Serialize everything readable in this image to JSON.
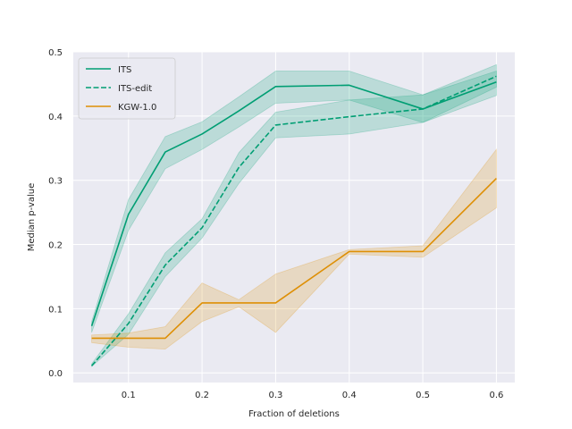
{
  "chart_data": {
    "type": "line",
    "title": "",
    "xlabel": "Fraction of deletions",
    "ylabel": "Median p-value",
    "xlim": [
      0.025,
      0.625
    ],
    "ylim": [
      -0.015,
      0.5
    ],
    "xticks": [
      0.1,
      0.2,
      0.3,
      0.4,
      0.5,
      0.6
    ],
    "xtick_labels": [
      "0.1",
      "0.2",
      "0.3",
      "0.4",
      "0.5",
      "0.6"
    ],
    "yticks": [
      0.0,
      0.1,
      0.2,
      0.3,
      0.4,
      0.5
    ],
    "ytick_labels": [
      "0.0",
      "0.1",
      "0.2",
      "0.3",
      "0.4",
      "0.5"
    ],
    "grid": true,
    "legend_position": "top-left",
    "series": [
      {
        "name": "ITS",
        "color": "#009e73",
        "style": "solid",
        "x": [
          0.05,
          0.1,
          0.15,
          0.2,
          0.25,
          0.3,
          0.4,
          0.5,
          0.6
        ],
        "values": [
          0.073,
          0.247,
          0.344,
          0.372,
          0.408,
          0.446,
          0.448,
          0.411,
          0.453
        ],
        "lower": [
          0.063,
          0.222,
          0.318,
          0.348,
          0.383,
          0.42,
          0.425,
          0.39,
          0.432
        ],
        "upper": [
          0.08,
          0.27,
          0.368,
          0.391,
          0.43,
          0.47,
          0.47,
          0.433,
          0.47
        ]
      },
      {
        "name": "ITS-edit",
        "color": "#009e73",
        "style": "dashed",
        "x": [
          0.05,
          0.1,
          0.15,
          0.2,
          0.25,
          0.3,
          0.4,
          0.5,
          0.6
        ],
        "values": [
          0.011,
          0.077,
          0.168,
          0.226,
          0.32,
          0.386,
          0.399,
          0.411,
          0.462
        ],
        "lower": [
          0.01,
          0.06,
          0.15,
          0.21,
          0.295,
          0.366,
          0.372,
          0.39,
          0.445
        ],
        "upper": [
          0.014,
          0.092,
          0.187,
          0.24,
          0.343,
          0.406,
          0.425,
          0.433,
          0.48
        ]
      },
      {
        "name": "KGW-1.0",
        "color": "#de8f05",
        "style": "solid",
        "x": [
          0.05,
          0.1,
          0.15,
          0.2,
          0.25,
          0.3,
          0.4,
          0.5,
          0.6
        ],
        "values": [
          0.054,
          0.054,
          0.054,
          0.109,
          0.109,
          0.109,
          0.189,
          0.189,
          0.303
        ],
        "lower": [
          0.047,
          0.04,
          0.037,
          0.08,
          0.103,
          0.063,
          0.185,
          0.18,
          0.257
        ],
        "upper": [
          0.059,
          0.062,
          0.072,
          0.14,
          0.114,
          0.154,
          0.192,
          0.198,
          0.348
        ]
      }
    ]
  }
}
